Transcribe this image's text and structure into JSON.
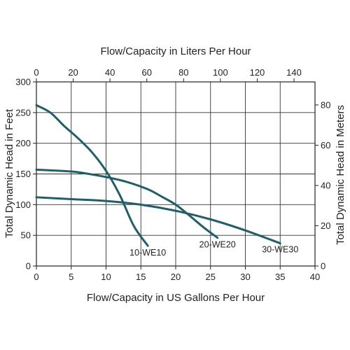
{
  "chart_data": {
    "type": "line",
    "title": "",
    "top_xlabel": "Flow/Capacity in Liters Per Hour",
    "xlabel": "Flow/Capacity in US Gallons Per Hour",
    "ylabel": "Total Dynamic Head in Feet",
    "right_ylabel": "Total Dynamic Head in Meters",
    "xlim": [
      0,
      40
    ],
    "ylim": [
      0,
      300
    ],
    "top_xlim": [
      0,
      151.4
    ],
    "right_ylim": [
      0,
      91.44
    ],
    "x_ticks": [
      "0",
      "5",
      "10",
      "15",
      "20",
      "25",
      "30",
      "35",
      "40"
    ],
    "y_ticks": [
      "0",
      "50",
      "100",
      "150",
      "200",
      "250",
      "300"
    ],
    "top_x_ticks": [
      "0",
      "20",
      "40",
      "60",
      "80",
      "100",
      "120",
      "140"
    ],
    "right_y_ticks": [
      "0",
      "20",
      "40",
      "60",
      "80"
    ],
    "grid": true,
    "line_color": "#1e5f6a",
    "series": [
      {
        "name": "10-WE10",
        "x": [
          0,
          2,
          4,
          6,
          8,
          10,
          12,
          14,
          16
        ],
        "y": [
          262,
          250,
          228,
          208,
          185,
          155,
          115,
          65,
          33
        ]
      },
      {
        "name": "20-WE20",
        "x": [
          0,
          5,
          7,
          10,
          13,
          16,
          18,
          20,
          22,
          24,
          26
        ],
        "y": [
          157,
          154,
          151,
          145,
          137,
          125,
          113,
          100,
          82,
          63,
          46
        ]
      },
      {
        "name": "30-WE30",
        "x": [
          0,
          5,
          10,
          15,
          20,
          25,
          30,
          35
        ],
        "y": [
          112,
          109,
          106,
          100,
          90,
          76,
          58,
          37
        ]
      }
    ]
  }
}
